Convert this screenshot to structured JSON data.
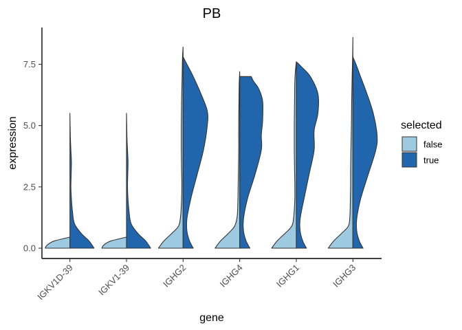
{
  "chart_data": {
    "type": "split-violin",
    "title": "PB",
    "xlabel": "gene",
    "ylabel": "expression",
    "categories": [
      "IGKV1D-39",
      "IGKV1-39",
      "IGHG2",
      "IGHG4",
      "IGHG1",
      "IGHG3"
    ],
    "ylim": [
      -0.4,
      9.1
    ],
    "yticks": [
      0.0,
      2.5,
      5.0,
      7.5
    ],
    "ytick_labels": [
      "0.0",
      "2.5",
      "5.0",
      "7.5"
    ],
    "grid": false,
    "legend": {
      "title": "selected",
      "position": "right",
      "entries": [
        {
          "label": "false",
          "color": "#9ecae1"
        },
        {
          "label": "true",
          "color": "#2166ac"
        }
      ]
    },
    "series": [
      {
        "name": "false",
        "color": "#9ecae1",
        "side": "left",
        "profiles": [
          {
            "category": "IGKV1D-39",
            "y": [
              0,
              0.05,
              0.12,
              0.2,
              0.3,
              0.45
            ],
            "width": [
              0.97,
              0.95,
              0.9,
              0.8,
              0.6,
              0.0
            ]
          },
          {
            "category": "IGKV1-39",
            "y": [
              0,
              0.05,
              0.12,
              0.2,
              0.3,
              0.45
            ],
            "width": [
              0.97,
              0.95,
              0.9,
              0.8,
              0.6,
              0.0
            ]
          },
          {
            "category": "IGHG2",
            "y": [
              0,
              0.3,
              0.6,
              0.9,
              1.3,
              2.0,
              2.6,
              3.2,
              4.0,
              5.0,
              6.0,
              7.0,
              7.5,
              7.9,
              8.2
            ],
            "width": [
              0.97,
              0.75,
              0.45,
              0.18,
              0.1,
              0.06,
              0.05,
              0.06,
              0.07,
              0.07,
              0.06,
              0.04,
              0.03,
              0.02,
              0.0
            ]
          },
          {
            "category": "IGHG4",
            "y": [
              0,
              0.3,
              0.6,
              0.9,
              1.3,
              2.0,
              2.6,
              3.2,
              4.0,
              5.0,
              6.0,
              6.7,
              7.2
            ],
            "width": [
              0.97,
              0.75,
              0.45,
              0.2,
              0.1,
              0.07,
              0.06,
              0.05,
              0.04,
              0.04,
              0.03,
              0.02,
              0.0
            ]
          },
          {
            "category": "IGHG1",
            "y": [
              0,
              0.3,
              0.6,
              0.9,
              1.3,
              2.0,
              2.6,
              3.2,
              4.0,
              5.0,
              6.0,
              6.8,
              7.3,
              7.6
            ],
            "width": [
              0.97,
              0.75,
              0.45,
              0.18,
              0.1,
              0.06,
              0.06,
              0.07,
              0.08,
              0.08,
              0.07,
              0.06,
              0.03,
              0.0
            ]
          },
          {
            "category": "IGHG3",
            "y": [
              0,
              0.3,
              0.6,
              0.9,
              1.3,
              2.0,
              2.6,
              3.2,
              4.0,
              5.0,
              6.0,
              7.0,
              8.0,
              8.6
            ],
            "width": [
              0.97,
              0.75,
              0.45,
              0.18,
              0.12,
              0.1,
              0.09,
              0.09,
              0.08,
              0.06,
              0.05,
              0.03,
              0.01,
              0.0
            ]
          }
        ]
      },
      {
        "name": "true",
        "color": "#2166ac",
        "side": "right",
        "profiles": [
          {
            "category": "IGKV1D-39",
            "y": [
              0,
              0.3,
              0.6,
              1.0,
              1.5,
              2.0,
              2.5,
              3.0,
              3.5,
              4.0,
              4.5,
              5.0,
              5.5
            ],
            "width": [
              0.95,
              0.75,
              0.45,
              0.18,
              0.1,
              0.06,
              0.04,
              0.05,
              0.06,
              0.04,
              0.02,
              0.01,
              0.0
            ]
          },
          {
            "category": "IGKV1-39",
            "y": [
              0,
              0.3,
              0.6,
              1.0,
              1.5,
              2.0,
              2.5,
              3.0,
              3.5,
              4.0,
              4.5,
              5.0,
              5.5
            ],
            "width": [
              0.95,
              0.75,
              0.45,
              0.18,
              0.1,
              0.06,
              0.04,
              0.05,
              0.06,
              0.04,
              0.02,
              0.01,
              0.0
            ]
          },
          {
            "category": "IGHG2",
            "y": [
              0,
              0.3,
              0.7,
              1.2,
              2.0,
              3.0,
              4.0,
              5.0,
              5.6,
              6.3,
              7.0,
              7.5,
              7.8
            ],
            "width": [
              0.4,
              0.25,
              0.15,
              0.15,
              0.3,
              0.55,
              0.8,
              0.95,
              0.95,
              0.7,
              0.4,
              0.15,
              0.0
            ]
          },
          {
            "category": "IGHG4",
            "y": [
              0,
              0.3,
              0.7,
              1.2,
              2.0,
              3.0,
              4.0,
              4.6,
              5.2,
              6.0,
              6.5,
              6.8,
              7.0
            ],
            "width": [
              0.4,
              0.25,
              0.15,
              0.15,
              0.3,
              0.6,
              0.85,
              0.85,
              0.9,
              0.9,
              0.75,
              0.55,
              0.45
            ]
          },
          {
            "category": "IGHG1",
            "y": [
              0,
              0.3,
              0.7,
              1.2,
              2.0,
              3.0,
              4.0,
              4.8,
              5.5,
              6.3,
              7.0,
              7.4,
              7.6
            ],
            "width": [
              0.4,
              0.25,
              0.15,
              0.15,
              0.3,
              0.5,
              0.7,
              0.7,
              0.85,
              0.85,
              0.55,
              0.2,
              0.0
            ]
          },
          {
            "category": "IGHG3",
            "y": [
              0,
              0.3,
              0.7,
              1.2,
              2.0,
              3.0,
              4.0,
              4.6,
              5.5,
              6.3,
              7.0,
              7.5,
              7.8
            ],
            "width": [
              0.4,
              0.25,
              0.15,
              0.15,
              0.3,
              0.6,
              0.9,
              0.95,
              0.8,
              0.55,
              0.3,
              0.12,
              0.0
            ]
          }
        ]
      }
    ]
  }
}
